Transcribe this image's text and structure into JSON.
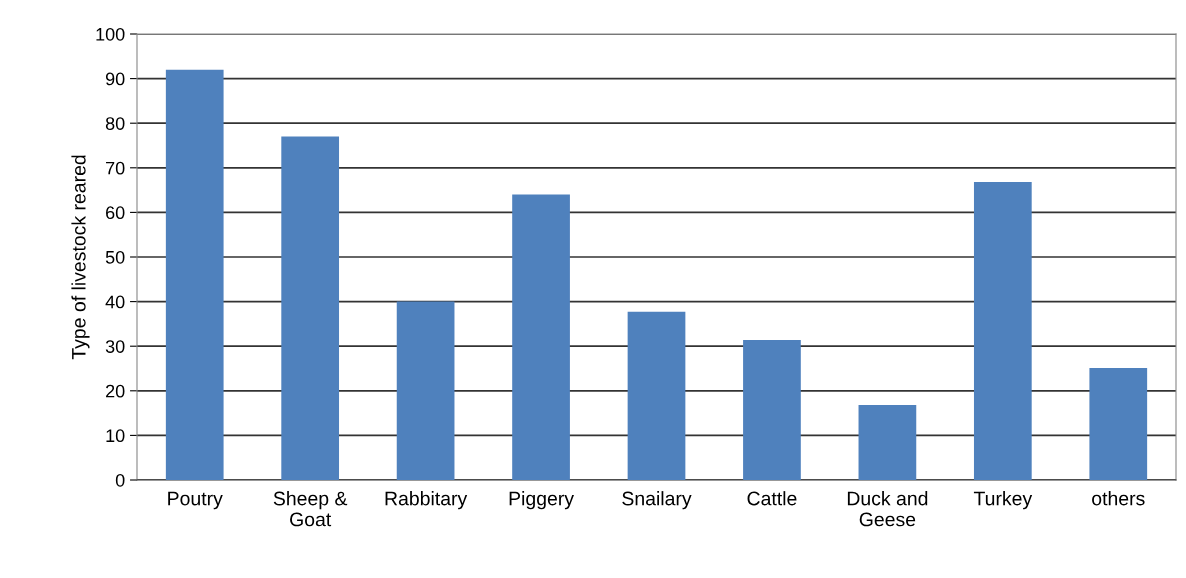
{
  "chart_data": {
    "type": "bar",
    "ylabel": "Type of livestock reared",
    "categories": [
      "Poutry",
      "Sheep &\nGoat",
      "Rabbitary",
      "Piggery",
      "Snailary",
      "Cattle",
      "Duck and\nGeese",
      "Turkey",
      "others"
    ],
    "values": [
      92,
      77,
      40,
      64,
      37.7,
      31.4,
      16.8,
      66.8,
      25.1
    ],
    "color": "#4f81bd",
    "ylim": [
      0,
      100
    ],
    "yticks": [
      0,
      10,
      20,
      30,
      40,
      50,
      60,
      70,
      80,
      90,
      100
    ],
    "grid": "y",
    "legend": false
  }
}
